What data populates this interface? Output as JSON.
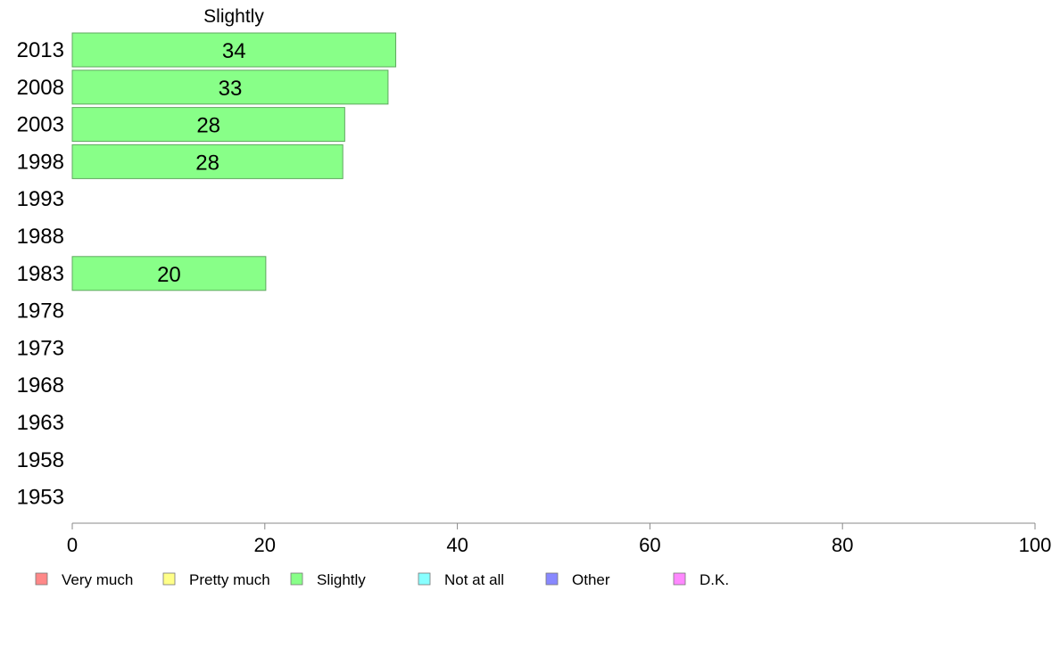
{
  "chart_data": {
    "type": "bar",
    "orientation": "horizontal",
    "title": "Slightly",
    "categories": [
      "2013",
      "2008",
      "2003",
      "1998",
      "1993",
      "1988",
      "1983",
      "1978",
      "1973",
      "1968",
      "1963",
      "1958",
      "1953"
    ],
    "series": [
      {
        "name": "Slightly",
        "color": "#88ff88",
        "values": [
          33.6,
          32.8,
          28.3,
          28.1,
          null,
          null,
          20.1,
          null,
          null,
          null,
          null,
          null,
          null
        ],
        "labels": [
          "34",
          "33",
          "28",
          "28",
          "",
          "",
          "20",
          "",
          "",
          "",
          "",
          "",
          ""
        ]
      }
    ],
    "xlim": [
      0,
      100
    ],
    "xticks": [
      0,
      20,
      40,
      60,
      80,
      100
    ],
    "grid": false,
    "legend_position": "bottom",
    "legend": [
      {
        "label": "Very much",
        "color": "#ff8888"
      },
      {
        "label": "Pretty much",
        "color": "#ffff88"
      },
      {
        "label": "Slightly",
        "color": "#88ff88"
      },
      {
        "label": "Not at all",
        "color": "#88ffff"
      },
      {
        "label": "Other",
        "color": "#8888ff"
      },
      {
        "label": "D.K.",
        "color": "#ff88ff"
      }
    ]
  }
}
